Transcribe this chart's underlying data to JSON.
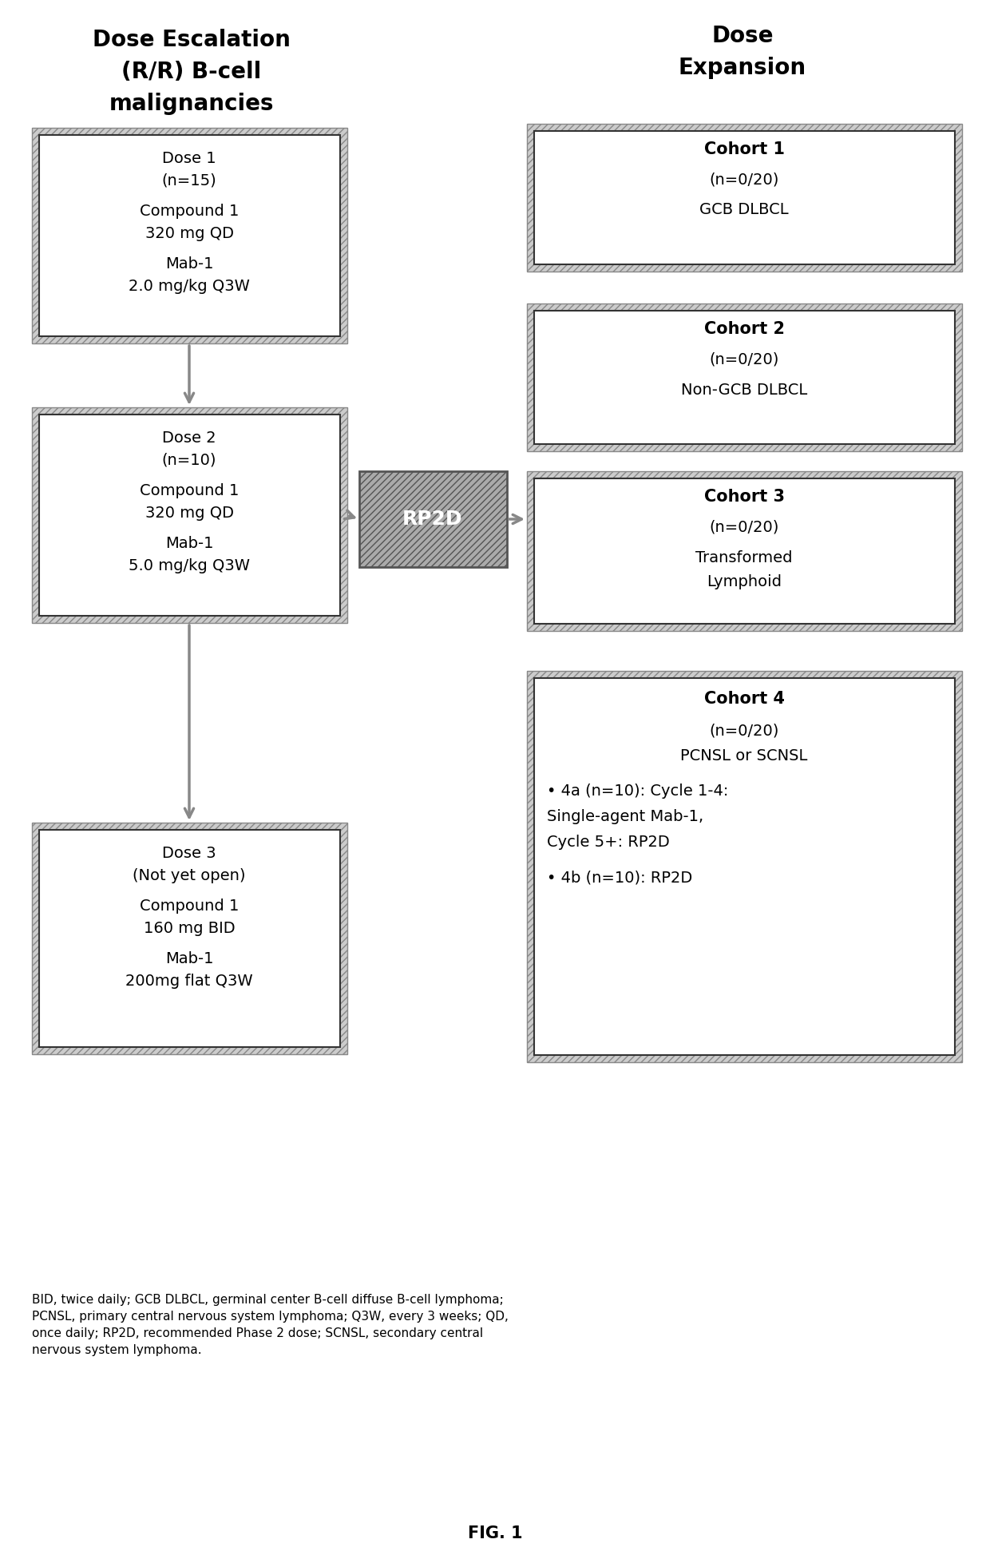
{
  "fig_width": 12.4,
  "fig_height": 19.62,
  "bg_color": "#ffffff",
  "left_title_lines": [
    "Dose Escalation",
    "(R/R) B-cell",
    "malignancies"
  ],
  "right_title_lines": [
    "Dose",
    "Expansion"
  ],
  "dose_boxes": [
    {
      "lines": [
        "Dose 1",
        "(n=15)",
        "",
        "Compound 1",
        "320 mg QD",
        "",
        "Mab-1",
        "2.0 mg/kg Q3W"
      ]
    },
    {
      "lines": [
        "Dose 2",
        "(n=10)",
        "",
        "Compound 1",
        "320 mg QD",
        "",
        "Mab-1",
        "5.0 mg/kg Q3W"
      ]
    },
    {
      "lines": [
        "Dose 3",
        "(Not yet open)",
        "",
        "Compound 1",
        "160 mg BID",
        "",
        "Mab-1",
        "200mg flat Q3W"
      ]
    }
  ],
  "cohort_boxes": [
    {
      "title": "Cohort 1",
      "lines": [
        "(n=0/20)",
        "",
        "GCB DLBCL"
      ]
    },
    {
      "title": "Cohort 2",
      "lines": [
        "(n=0/20)",
        "",
        "Non-GCB DLBCL"
      ]
    },
    {
      "title": "Cohort 3",
      "lines": [
        "(n=0/20)",
        "",
        "Transformed",
        "Lymphoid"
      ]
    },
    {
      "title": "Cohort 4",
      "lines": [
        "(n=0/20)",
        "PCNSL or SCNSL",
        "",
        "• 4a (n=10): Cycle 1-4:",
        "Single-agent Mab-1,",
        "Cycle 5+: RP2D",
        "",
        "• 4b (n=10): RP2D"
      ]
    }
  ],
  "rp2d_label": "RP2D",
  "footnote": "BID, twice daily; GCB DLBCL, germinal center B-cell diffuse B-cell lymphoma;\nPCNSL, primary central nervous system lymphoma; Q3W, every 3 weeks; QD,\nonce daily; RP2D, recommended Phase 2 dose; SCNSL, secondary central\nnervous system lymphoma.",
  "fig_label": "FIG. 1"
}
